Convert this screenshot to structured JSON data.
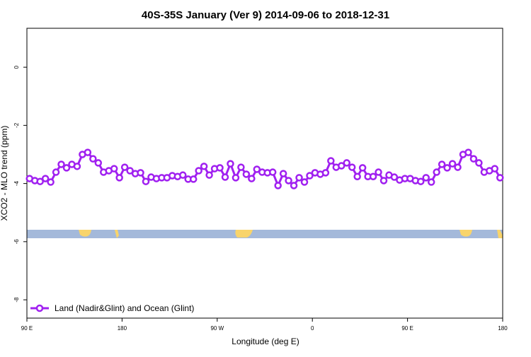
{
  "chart_data": {
    "type": "line",
    "title": "40S-35S January (Ver 9)   2014-09-06 to 2018-12-31",
    "x_label": "Longitude (deg E)",
    "y_label": "XCO2 - MLO trend (ppm)",
    "x": [
      92.5,
      97.5,
      102.5,
      107.5,
      112.5,
      117.5,
      122.5,
      127.5,
      132.5,
      137.5,
      142.5,
      147.5,
      152.5,
      157.5,
      162.5,
      167.5,
      172.5,
      177.5,
      182.5,
      187.5,
      192.5,
      197.5,
      202.5,
      207.5,
      212.5,
      217.5,
      222.5,
      227.5,
      232.5,
      237.5,
      242.5,
      247.5,
      252.5,
      257.5,
      262.5,
      267.5,
      272.5,
      277.5,
      282.5,
      287.5,
      292.5,
      297.5,
      302.5,
      307.5,
      312.5,
      317.5,
      322.5,
      327.5,
      332.5,
      337.5,
      342.5,
      347.5,
      352.5,
      357.5,
      362.5,
      367.5,
      372.5,
      377.5,
      382.5,
      387.5,
      392.5,
      397.5,
      402.5,
      407.5,
      412.5,
      417.5,
      422.5,
      427.5,
      432.5,
      437.5,
      442.5,
      447.5,
      452.5,
      457.5,
      462.5,
      467.5,
      472.5,
      477.5,
      482.5,
      487.5,
      492.5,
      497.5,
      502.5,
      507.5,
      512.5,
      517.5,
      522.5,
      527.5,
      532.5,
      537.5
    ],
    "series": [
      {
        "name": "Land (Nadir&Glint) and Ocean (Glint)",
        "color": "#a020f0",
        "values": [
          -3.83,
          -3.9,
          -3.93,
          -3.83,
          -3.95,
          -3.61,
          -3.34,
          -3.46,
          -3.34,
          -3.41,
          -3.0,
          -2.93,
          -3.15,
          -3.29,
          -3.61,
          -3.56,
          -3.49,
          -3.8,
          -3.44,
          -3.56,
          -3.66,
          -3.63,
          -3.93,
          -3.78,
          -3.83,
          -3.8,
          -3.8,
          -3.73,
          -3.76,
          -3.71,
          -3.85,
          -3.85,
          -3.56,
          -3.41,
          -3.71,
          -3.49,
          -3.46,
          -3.78,
          -3.32,
          -3.8,
          -3.44,
          -3.68,
          -3.83,
          -3.51,
          -3.61,
          -3.63,
          -3.61,
          -4.07,
          -3.66,
          -3.9,
          -4.07,
          -3.8,
          -3.95,
          -3.73,
          -3.63,
          -3.68,
          -3.63,
          -3.22,
          -3.44,
          -3.39,
          -3.29,
          -3.44,
          -3.76,
          -3.46,
          -3.76,
          -3.76,
          -3.61,
          -3.9,
          -3.71,
          -3.78,
          -3.88,
          -3.83,
          -3.83,
          -3.9,
          -3.93,
          -3.8,
          -3.95,
          -3.61,
          -3.34,
          -3.46,
          -3.32,
          -3.44,
          -3.0,
          -2.93,
          -3.15,
          -3.29,
          -3.61,
          -3.56,
          -3.49,
          -3.8
        ]
      }
    ],
    "xlim": [
      90,
      540
    ],
    "xticks": [
      {
        "value": 90,
        "label": "90 E"
      },
      {
        "value": 180,
        "label": "180"
      },
      {
        "value": 270,
        "label": "90 W"
      },
      {
        "value": 360,
        "label": "0"
      },
      {
        "value": 450,
        "label": "90 E"
      },
      {
        "value": 540,
        "label": "180"
      }
    ],
    "ylim": [
      -8.63,
      1.34
    ],
    "yticks": [
      0,
      -2,
      -4,
      -6,
      -8
    ],
    "legend": "bottom-left"
  }
}
